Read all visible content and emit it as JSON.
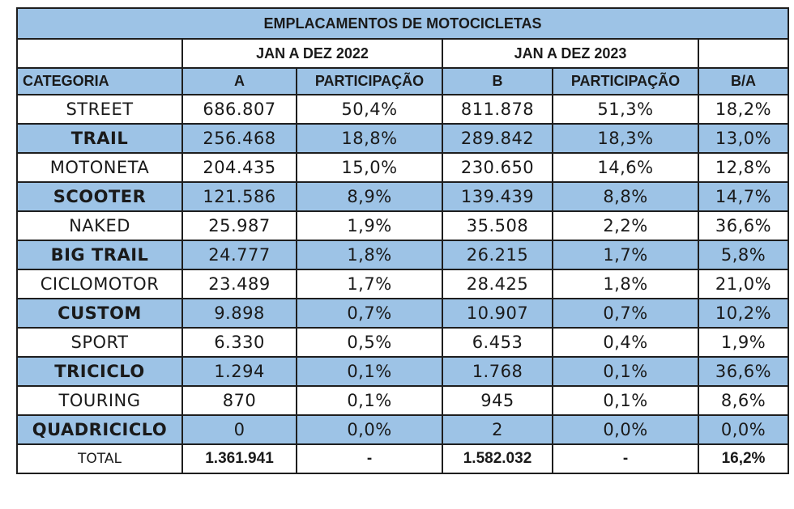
{
  "title": "EMPLACAMENTOS DE MOTOCICLETAS",
  "periods": [
    "JAN A DEZ 2022",
    "JAN A DEZ 2023"
  ],
  "headers": {
    "categoria": "CATEGORIA",
    "a": "A",
    "part_a": "PARTICIPAÇÃO",
    "b": "B",
    "part_b": "PARTICIPAÇÃO",
    "ba": "B/A"
  },
  "rows": [
    {
      "categoria": "STREET",
      "a": "686.807",
      "part_a": "50,4%",
      "b": "811.878",
      "part_b": "51,3%",
      "ba": "18,2%"
    },
    {
      "categoria": "TRAIL",
      "a": "256.468",
      "part_a": "18,8%",
      "b": "289.842",
      "part_b": "18,3%",
      "ba": "13,0%"
    },
    {
      "categoria": "MOTONETA",
      "a": "204.435",
      "part_a": "15,0%",
      "b": "230.650",
      "part_b": "14,6%",
      "ba": "12,8%"
    },
    {
      "categoria": "SCOOTER",
      "a": "121.586",
      "part_a": "8,9%",
      "b": "139.439",
      "part_b": "8,8%",
      "ba": "14,7%"
    },
    {
      "categoria": "NAKED",
      "a": "25.987",
      "part_a": "1,9%",
      "b": "35.508",
      "part_b": "2,2%",
      "ba": "36,6%"
    },
    {
      "categoria": "BIG TRAIL",
      "a": "24.777",
      "part_a": "1,8%",
      "b": "26.215",
      "part_b": "1,7%",
      "ba": "5,8%"
    },
    {
      "categoria": "CICLOMOTOR",
      "a": "23.489",
      "part_a": "1,7%",
      "b": "28.425",
      "part_b": "1,8%",
      "ba": "21,0%"
    },
    {
      "categoria": "CUSTOM",
      "a": "9.898",
      "part_a": "0,7%",
      "b": "10.907",
      "part_b": "0,7%",
      "ba": "10,2%"
    },
    {
      "categoria": "SPORT",
      "a": "6.330",
      "part_a": "0,5%",
      "b": "6.453",
      "part_b": "0,4%",
      "ba": "1,9%"
    },
    {
      "categoria": "TRICICLO",
      "a": "1.294",
      "part_a": "0,1%",
      "b": "1.768",
      "part_b": "0,1%",
      "ba": "36,6%"
    },
    {
      "categoria": "TOURING",
      "a": "870",
      "part_a": "0,1%",
      "b": "945",
      "part_b": "0,1%",
      "ba": "8,6%"
    },
    {
      "categoria": "QUADRICICLO",
      "a": "0",
      "part_a": "0,0%",
      "b": "2",
      "part_b": "0,0%",
      "ba": "0,0%"
    }
  ],
  "total": {
    "categoria": "TOTAL",
    "a": "1.361.941",
    "part_a": "-",
    "b": "1.582.032",
    "part_b": "-",
    "ba": "16,2%"
  },
  "colors": {
    "header_blue": "#9dc3e6",
    "border": "#1e1e1e"
  }
}
